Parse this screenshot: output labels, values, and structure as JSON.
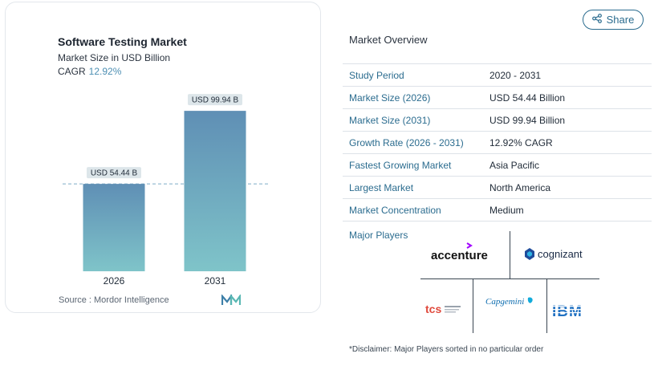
{
  "chart": {
    "title": "Software Testing Market",
    "subtitle": "Market Size in USD Billion",
    "cagr_label": "CAGR",
    "cagr_value": "12.92%",
    "source": "Source :  Mordor Intelligence",
    "colors": {
      "bar_top": "#5f8fb5",
      "bar_bottom": "#7fc4c9",
      "accent": "#4d8fb3"
    }
  },
  "chart_data": {
    "type": "bar",
    "categories": [
      "2026",
      "2031"
    ],
    "values": [
      54.44,
      99.94
    ],
    "data_labels": [
      "USD 54.44 B",
      "USD 99.94 B"
    ],
    "title": "Software Testing Market",
    "subtitle": "Market Size in USD Billion",
    "xlabel": "",
    "ylabel": "",
    "ylim": [
      0,
      110
    ],
    "grid": false,
    "reference_line": "dashed at first bar value"
  },
  "share": {
    "label": "Share",
    "icon": "share-icon"
  },
  "overview": {
    "title": "Market Overview",
    "rows": [
      {
        "key": "Study Period",
        "value": "2020 - 2031"
      },
      {
        "key": "Market Size (2026)",
        "value": "USD 54.44 Billion"
      },
      {
        "key": "Market Size (2031)",
        "value": "USD 99.94 Billion"
      },
      {
        "key": "Growth Rate (2026 - 2031)",
        "value": "12.92% CAGR"
      },
      {
        "key": "Fastest Growing Market",
        "value": "Asia Pacific"
      },
      {
        "key": "Largest Market",
        "value": "North America"
      },
      {
        "key": "Market Concentration",
        "value": "Medium"
      }
    ],
    "players_label": "Major Players",
    "players": {
      "accenture": "accenture",
      "cognizant": "cognizant",
      "capgemini": "Capgemini",
      "tcs": "tcs",
      "ibm": "IBM"
    },
    "disclaimer": "*Disclaimer: Major Players sorted in no particular order"
  }
}
